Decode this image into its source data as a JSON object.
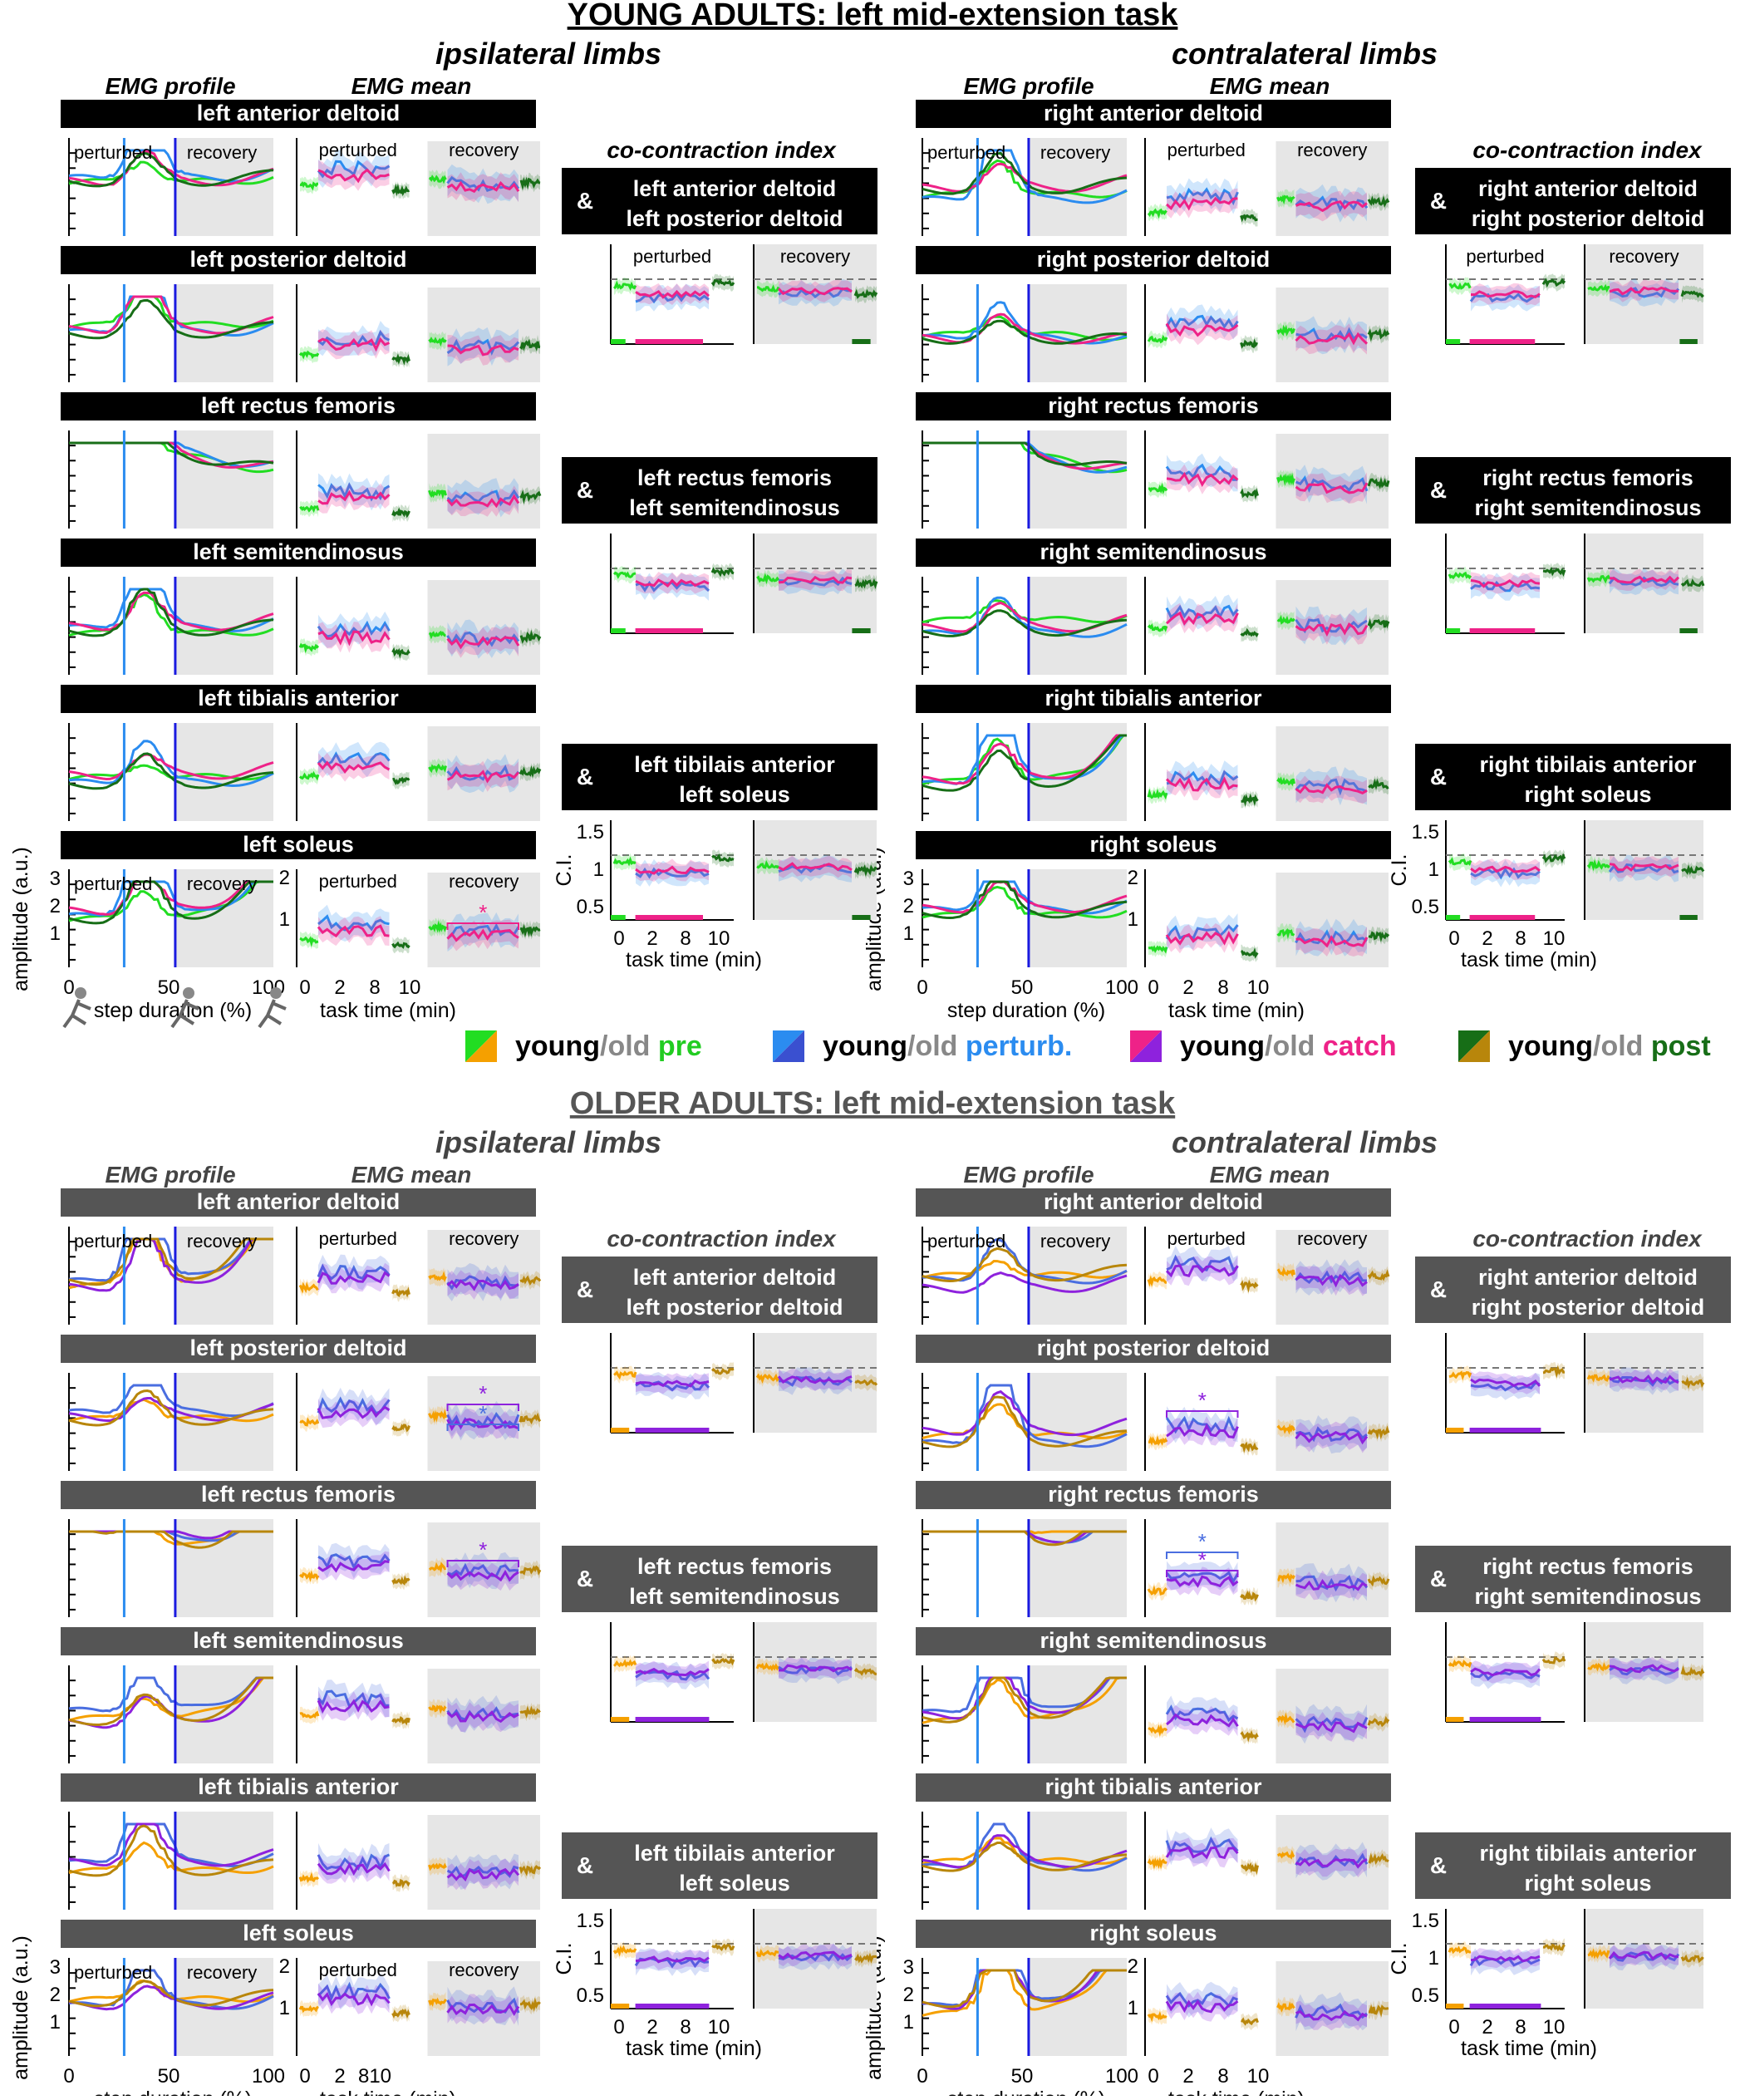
{
  "young": {
    "title": "YOUNG ADULTS: left mid-extension task",
    "ipsi_label": "ipsilateral limbs",
    "contra_label": "contralateral limbs",
    "profile_label": "EMG profile",
    "mean_label": "EMG mean",
    "cci_label": "co-contraction index",
    "ipsi_muscles": [
      "left anterior deltoid",
      "left posterior deltoid",
      "left rectus femoris",
      "left semitendinosus",
      "left tibialis anterior",
      "left soleus"
    ],
    "contra_muscles": [
      "right anterior deltoid",
      "right posterior deltoid",
      "right rectus femoris",
      "right semitendinosus",
      "right tibialis anterior",
      "right soleus"
    ],
    "ipsi_pairs": [
      [
        "left anterior deltoid",
        "left posterior deltoid"
      ],
      [
        "left rectus femoris",
        "left semitendinosus"
      ],
      [
        "left tibilais anterior",
        "left soleus"
      ]
    ],
    "contra_pairs": [
      [
        "right anterior deltoid",
        "right posterior deltoid"
      ],
      [
        "right rectus femoris",
        "right semitendinosus"
      ],
      [
        "right tibilais anterior",
        "right soleus"
      ]
    ]
  },
  "older": {
    "title": "OLDER ADULTS: left mid-extension task",
    "ipsi_label": "ipsilateral limbs",
    "contra_label": "contralateral limbs",
    "profile_label": "EMG profile",
    "mean_label": "EMG mean",
    "cci_label": "co-contraction index",
    "ipsi_muscles": [
      "left anterior deltoid",
      "left posterior deltoid",
      "left rectus femoris",
      "left semitendinosus",
      "left tibialis anterior",
      "left soleus"
    ],
    "contra_muscles": [
      "right anterior deltoid",
      "right posterior deltoid",
      "right rectus femoris",
      "right semitendinosus",
      "right tibialis anterior",
      "right soleus"
    ],
    "ipsi_pairs": [
      [
        "left anterior deltoid",
        "left posterior deltoid"
      ],
      [
        "left rectus femoris",
        "left semitendinosus"
      ],
      [
        "left tibilais anterior",
        "left soleus"
      ]
    ],
    "contra_pairs": [
      [
        "right anterior deltoid",
        "right posterior deltoid"
      ],
      [
        "right rectus femoris",
        "right semitendinosus"
      ],
      [
        "right tibilais anterior",
        "right soleus"
      ]
    ]
  },
  "labels": {
    "perturbed": "perturbed",
    "recovery": "recovery",
    "amplitude": "amplitude (a.u.)",
    "step_duration": "step duration (%)",
    "task_time": "task time (min)",
    "ci": "C.I.",
    "amp": "&",
    "star": "*"
  },
  "ticks": {
    "profile_x": [
      "0",
      "50",
      "100"
    ],
    "profile_y": [
      "1",
      "2",
      "3"
    ],
    "mean_y": [
      "1",
      "2"
    ],
    "time_x": [
      "0",
      "2",
      "8",
      "10"
    ],
    "time_x_older": [
      "0",
      "2",
      "810"
    ],
    "ci_y": [
      "0.5",
      "1",
      "1.5"
    ]
  },
  "legend": [
    {
      "young": "young",
      "slash": "/",
      "old": "old",
      "cond": "pre",
      "c1": "#22dd22",
      "c2": "#f5a000",
      "text_color": "#22cc22"
    },
    {
      "young": "young",
      "slash": "/",
      "old": "old",
      "cond": "perturb.",
      "c1": "#2b8cf0",
      "c2": "#3a50d0",
      "text_color": "#2b8cf0"
    },
    {
      "young": "young",
      "slash": "/",
      "old": "old",
      "cond": "catch",
      "c1": "#ee2288",
      "c2": "#8e22dd",
      "text_color": "#ee2288"
    },
    {
      "young": "young",
      "slash": "/",
      "old": "old",
      "cond": "post",
      "c1": "#176e17",
      "c2": "#b8860b",
      "text_color": "#176e17"
    }
  ],
  "colors": {
    "young_pre": "#22dd22",
    "young_perturb": "#2b8cf0",
    "young_catch": "#ee2288",
    "young_post": "#176e17",
    "old_pre": "#f5a000",
    "old_perturb": "#4a6ee0",
    "old_catch": "#8e22dd",
    "old_post": "#b8860b",
    "header_young": "#000000",
    "header_old": "#555555",
    "recovery_bg": "#e6e6e6"
  }
}
